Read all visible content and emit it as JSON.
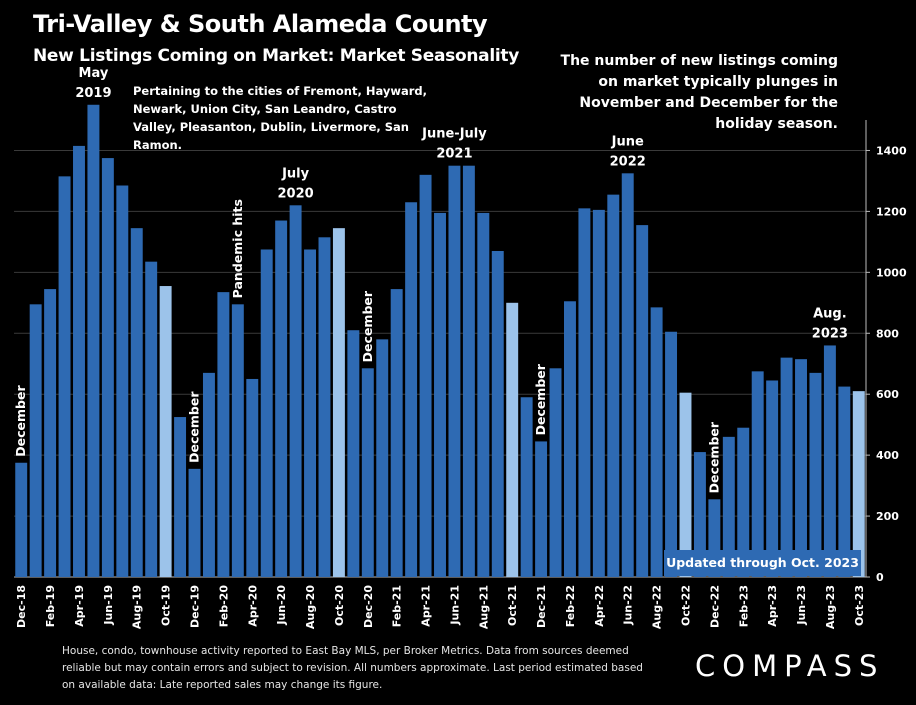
{
  "header": {
    "title": "Tri-Valley & South Alameda County",
    "subtitle": "New Listings Coming on Market: Market Seasonality"
  },
  "note": "Pertaining to the cities of Fremont, Hayward, Newark, Union City, San Leandro, Castro Valley, Pleasanton, Dublin, Livermore, San Ramon.",
  "side_note": "The number of new listings coming on market typically plunges in November and December for the holiday season.",
  "updated_label": "Updated through Oct. 2023",
  "footer": "House, condo, townhouse activity reported to East Bay MLS, per Broker Metrics. Data from sources deemed reliable but may contain errors and subject to revision. All numbers approximate. Last period estimated based on available data: Late reported sales may change its figure.",
  "logo": "COMPASS",
  "colors": {
    "bar": "#2e6ab3",
    "bar_highlight": "#9cc3ea",
    "background": "#000000",
    "gridline": "#3a3a3a"
  },
  "chart_data": {
    "type": "bar",
    "title": "New Listings Coming on Market: Market Seasonality",
    "ylim": [
      0,
      1500
    ],
    "yticks": [
      0,
      200,
      400,
      600,
      800,
      1000,
      1200,
      1400
    ],
    "grid": true,
    "y_axis_side": "right",
    "categories": [
      "Dec-18",
      "Jan-19",
      "Feb-19",
      "Mar-19",
      "Apr-19",
      "May-19",
      "Jun-19",
      "Jul-19",
      "Aug-19",
      "Sep-19",
      "Oct-19",
      "Nov-19",
      "Dec-19",
      "Jan-20",
      "Feb-20",
      "Mar-20",
      "Apr-20",
      "May-20",
      "Jun-20",
      "Jul-20",
      "Aug-20",
      "Sep-20",
      "Oct-20",
      "Nov-20",
      "Dec-20",
      "Jan-21",
      "Feb-21",
      "Mar-21",
      "Apr-21",
      "May-21",
      "Jun-21",
      "Jul-21",
      "Aug-21",
      "Sep-21",
      "Oct-21",
      "Nov-21",
      "Dec-21",
      "Jan-22",
      "Feb-22",
      "Mar-22",
      "Apr-22",
      "May-22",
      "Jun-22",
      "Jul-22",
      "Aug-22",
      "Sep-22",
      "Oct-22",
      "Nov-22",
      "Dec-22",
      "Jan-23",
      "Feb-23",
      "Mar-23",
      "Apr-23",
      "May-23",
      "Jun-23",
      "Jul-23",
      "Aug-23",
      "Sep-23",
      "Oct-23"
    ],
    "values": [
      375,
      895,
      945,
      1315,
      1415,
      1550,
      1375,
      1285,
      1145,
      1035,
      955,
      525,
      355,
      670,
      935,
      895,
      650,
      1075,
      1170,
      1220,
      1075,
      1115,
      1145,
      810,
      685,
      780,
      945,
      1230,
      1320,
      1195,
      1350,
      1350,
      1195,
      1070,
      900,
      590,
      445,
      685,
      905,
      1210,
      1205,
      1255,
      1325,
      1155,
      885,
      805,
      605,
      410,
      255,
      460,
      490,
      675,
      645,
      720,
      715,
      670,
      760,
      625,
      610
    ],
    "highlighted": [
      "Oct-19",
      "Oct-20",
      "Oct-21",
      "Oct-22",
      "Oct-23"
    ],
    "xtick_labels": [
      "Dec-18",
      "Feb-19",
      "Apr-19",
      "Jun-19",
      "Aug-19",
      "Oct-19",
      "Dec-19",
      "Feb-20",
      "Apr-20",
      "Jun-20",
      "Aug-20",
      "Oct-20",
      "Dec-20",
      "Feb-21",
      "Apr-21",
      "Jun-21",
      "Aug-21",
      "Oct-21",
      "Dec-21",
      "Feb-22",
      "Apr-22",
      "Jun-22",
      "Aug-22",
      "Oct-22",
      "Dec-22",
      "Feb-23",
      "Apr-23",
      "Jun-23",
      "Aug-23",
      "Oct-23"
    ],
    "annotations": [
      {
        "text": "May\n2019",
        "category": "May-19",
        "orientation": "horizontal"
      },
      {
        "text": "July\n2020",
        "category": "Jul-20",
        "orientation": "horizontal"
      },
      {
        "text": "June-July\n2021",
        "category": "Jun-21",
        "orientation": "horizontal"
      },
      {
        "text": "June\n2022",
        "category": "Jun-22",
        "orientation": "horizontal"
      },
      {
        "text": "Aug.\n2023",
        "category": "Aug-23",
        "orientation": "horizontal"
      },
      {
        "text": "December",
        "category": "Dec-18",
        "orientation": "vertical"
      },
      {
        "text": "December",
        "category": "Dec-19",
        "orientation": "vertical"
      },
      {
        "text": "Pandemic hits",
        "category": "Mar-20",
        "orientation": "vertical"
      },
      {
        "text": "December",
        "category": "Dec-20",
        "orientation": "vertical"
      },
      {
        "text": "December",
        "category": "Dec-21",
        "orientation": "vertical"
      },
      {
        "text": "December",
        "category": "Dec-22",
        "orientation": "vertical"
      }
    ]
  }
}
